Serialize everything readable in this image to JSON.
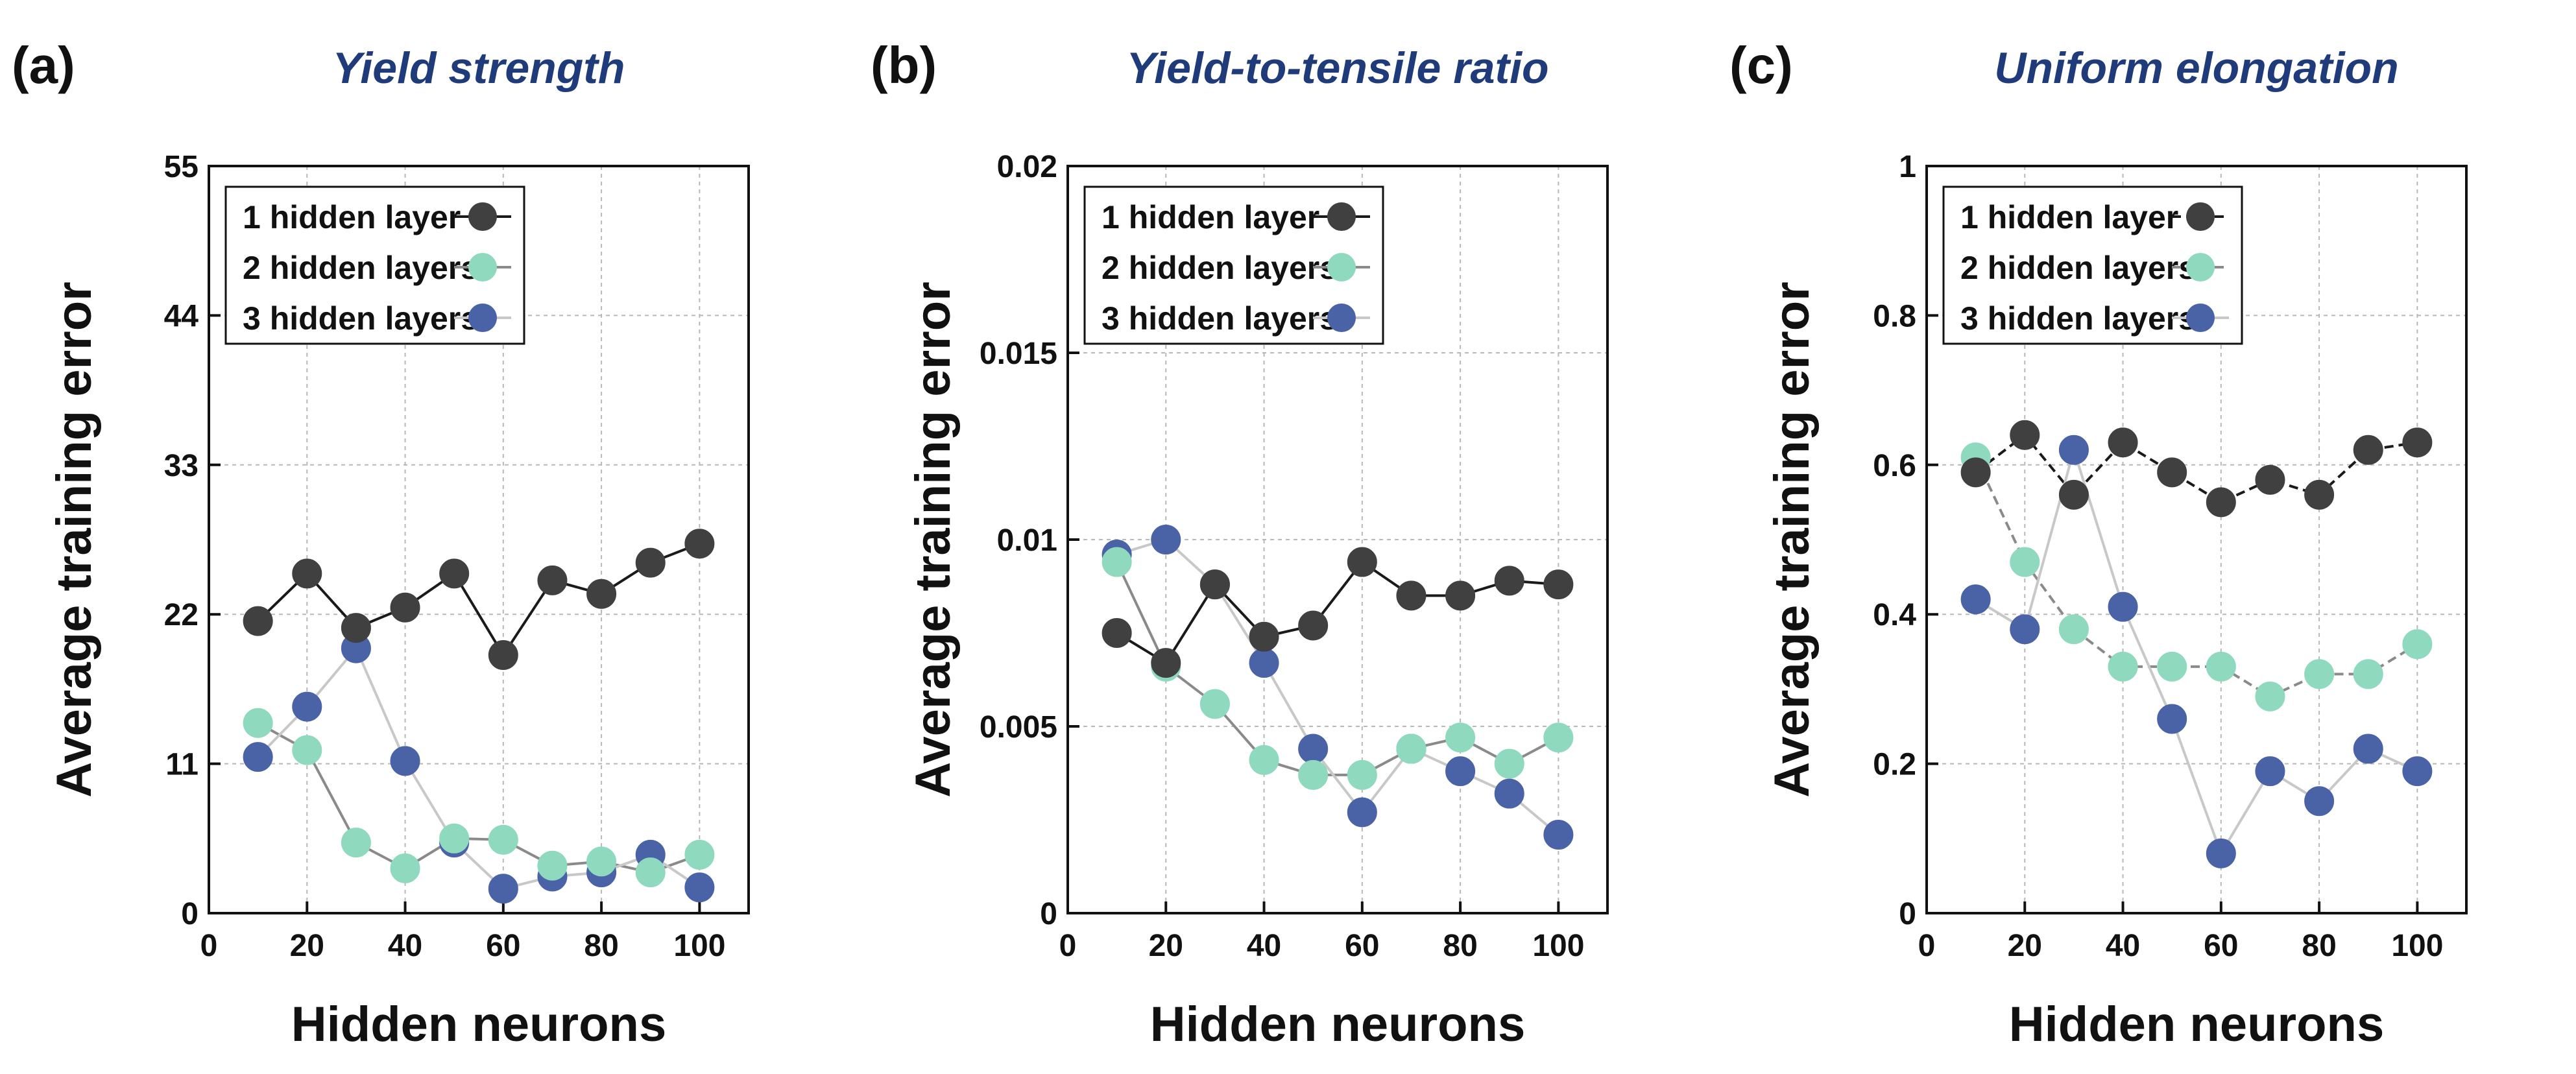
{
  "chart_data": [
    {
      "panel_label": "(a)",
      "title": "Yield strength",
      "type": "line",
      "xlabel": "Hidden neurons",
      "ylabel": "Average training error",
      "xlim": [
        0,
        110
      ],
      "ylim": [
        0,
        55
      ],
      "xticks": [
        0,
        20,
        40,
        60,
        80,
        100
      ],
      "xtick_labels": [
        "0",
        "20",
        "40",
        "60",
        "80",
        "100"
      ],
      "yticks": [
        0,
        11,
        22,
        33,
        44,
        55
      ],
      "ytick_labels": [
        "0",
        "11",
        "22",
        "33",
        "44",
        "55"
      ],
      "grid": true,
      "legend_position": "top-left",
      "x": [
        10,
        20,
        30,
        40,
        50,
        60,
        70,
        80,
        90,
        100
      ],
      "series": [
        {
          "name": "1 hidden layer",
          "color": "#404040",
          "line_color": "#1a1a1a",
          "dashed": false,
          "values": [
            21.5,
            25.0,
            21.0,
            22.5,
            25.0,
            19.0,
            24.5,
            23.5,
            25.8,
            27.2
          ]
        },
        {
          "name": "2 hidden layers",
          "color": "#8fd9bf",
          "line_color": "#8a8a8a",
          "dashed": false,
          "values": [
            14.0,
            12.0,
            5.2,
            3.3,
            5.5,
            5.4,
            3.5,
            3.8,
            3.0,
            4.3
          ]
        },
        {
          "name": "3 hidden layers",
          "color": "#4a62a6",
          "line_color": "#c8c8c8",
          "dashed": false,
          "values": [
            11.5,
            15.2,
            19.5,
            11.2,
            5.2,
            1.8,
            2.7,
            3.0,
            4.3,
            1.9
          ]
        }
      ]
    },
    {
      "panel_label": "(b)",
      "title": "Yield-to-tensile ratio",
      "type": "line",
      "xlabel": "Hidden neurons",
      "ylabel": "Average training error",
      "xlim": [
        0,
        110
      ],
      "ylim": [
        0,
        0.02
      ],
      "xticks": [
        0,
        20,
        40,
        60,
        80,
        100
      ],
      "xtick_labels": [
        "0",
        "20",
        "40",
        "60",
        "80",
        "100"
      ],
      "yticks": [
        0,
        0.005,
        0.01,
        0.015,
        0.02
      ],
      "ytick_labels": [
        "0",
        "0.005",
        "0.01",
        "0.015",
        "0.02"
      ],
      "grid": true,
      "legend_position": "top-left",
      "x": [
        10,
        20,
        30,
        40,
        50,
        60,
        70,
        80,
        90,
        100
      ],
      "series": [
        {
          "name": "1 hidden layer",
          "color": "#404040",
          "line_color": "#1a1a1a",
          "dashed": false,
          "values": [
            0.0075,
            0.0067,
            0.0088,
            0.0074,
            0.0077,
            0.0094,
            0.0085,
            0.0085,
            0.0089,
            0.0088
          ]
        },
        {
          "name": "2 hidden layers",
          "color": "#8fd9bf",
          "line_color": "#8a8a8a",
          "dashed": false,
          "values": [
            0.0094,
            0.0066,
            0.0056,
            0.0041,
            0.0037,
            0.0037,
            0.0044,
            0.0047,
            0.004,
            0.0047
          ]
        },
        {
          "name": "3 hidden layers",
          "color": "#4a62a6",
          "line_color": "#c8c8c8",
          "dashed": false,
          "values": [
            0.0096,
            0.01,
            0.0088,
            0.0067,
            0.0044,
            0.0027,
            0.0044,
            0.0038,
            0.0032,
            0.0021
          ]
        }
      ]
    },
    {
      "panel_label": "(c)",
      "title": "Uniform elongation",
      "type": "line",
      "xlabel": "Hidden neurons",
      "ylabel": "Average training error",
      "xlim": [
        0,
        110
      ],
      "ylim": [
        0,
        1
      ],
      "xticks": [
        0,
        20,
        40,
        60,
        80,
        100
      ],
      "xtick_labels": [
        "0",
        "20",
        "40",
        "60",
        "80",
        "100"
      ],
      "yticks": [
        0,
        0.2,
        0.4,
        0.6,
        0.8,
        1
      ],
      "ytick_labels": [
        "0",
        "0.2",
        "0.4",
        "0.6",
        "0.8",
        "1"
      ],
      "grid": true,
      "legend_position": "top-left",
      "x": [
        10,
        20,
        30,
        40,
        50,
        60,
        70,
        80,
        90,
        100
      ],
      "series": [
        {
          "name": "1 hidden layer",
          "color": "#404040",
          "line_color": "#1a1a1a",
          "dashed": true,
          "values": [
            0.59,
            0.64,
            0.56,
            0.63,
            0.59,
            0.55,
            0.58,
            0.56,
            0.62,
            0.63
          ]
        },
        {
          "name": "2 hidden layers",
          "color": "#8fd9bf",
          "line_color": "#8a8a8a",
          "dashed": true,
          "values": [
            0.61,
            0.47,
            0.38,
            0.33,
            0.33,
            0.33,
            0.29,
            0.32,
            0.32,
            0.36
          ]
        },
        {
          "name": "3 hidden layers",
          "color": "#4a62a6",
          "line_color": "#c8c8c8",
          "dashed": false,
          "values": [
            0.42,
            0.38,
            0.62,
            0.41,
            0.26,
            0.08,
            0.19,
            0.15,
            0.22,
            0.19
          ]
        }
      ]
    }
  ]
}
